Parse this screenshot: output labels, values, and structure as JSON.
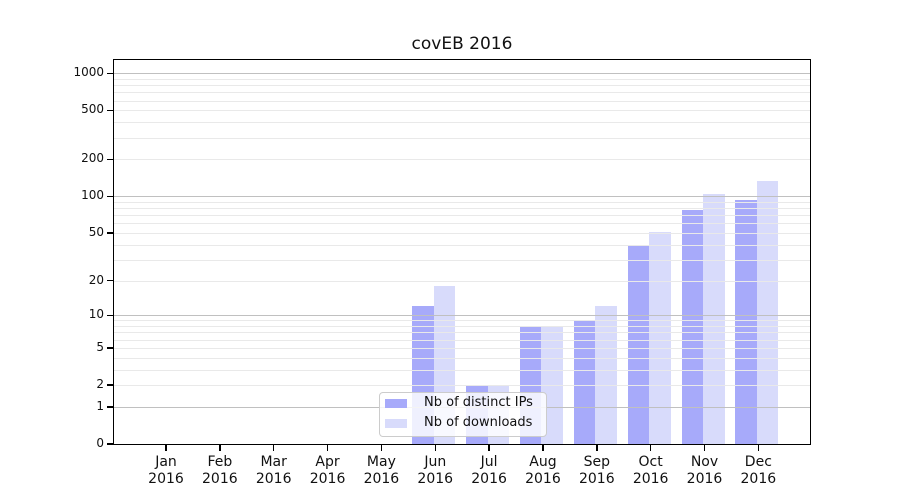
{
  "chart_data": {
    "type": "bar",
    "title": "covEB 2016",
    "x_months": [
      "Jan",
      "Feb",
      "Mar",
      "Apr",
      "May",
      "Jun",
      "Jul",
      "Aug",
      "Sep",
      "Oct",
      "Nov",
      "Dec"
    ],
    "x_year": "2016",
    "categories": [
      "Jan 2016",
      "Feb 2016",
      "Mar 2016",
      "Apr 2016",
      "May 2016",
      "Jun 2016",
      "Jul 2016",
      "Aug 2016",
      "Sep 2016",
      "Oct 2016",
      "Nov 2016",
      "Dec 2016"
    ],
    "series": [
      {
        "name": "Nb of distinct IPs",
        "color": "#a7aafa",
        "values": [
          0,
          0,
          0,
          0,
          0,
          12,
          2,
          8,
          9,
          40,
          78,
          93
        ]
      },
      {
        "name": "Nb of downloads",
        "color": "#d8dbfb",
        "values": [
          0,
          0,
          0,
          0,
          0,
          18,
          2,
          8,
          12,
          51,
          105,
          134
        ]
      }
    ],
    "y_ticks": [
      0,
      1,
      2,
      5,
      10,
      20,
      50,
      100,
      200,
      500,
      1000
    ],
    "y_scale": "symlog-log1p",
    "ylim": [
      0,
      1048
    ],
    "grid": true,
    "grid_major_color": "#c0c0c0",
    "grid_minor_color": "#e9e9e9",
    "legend_position": "bottom-center"
  }
}
